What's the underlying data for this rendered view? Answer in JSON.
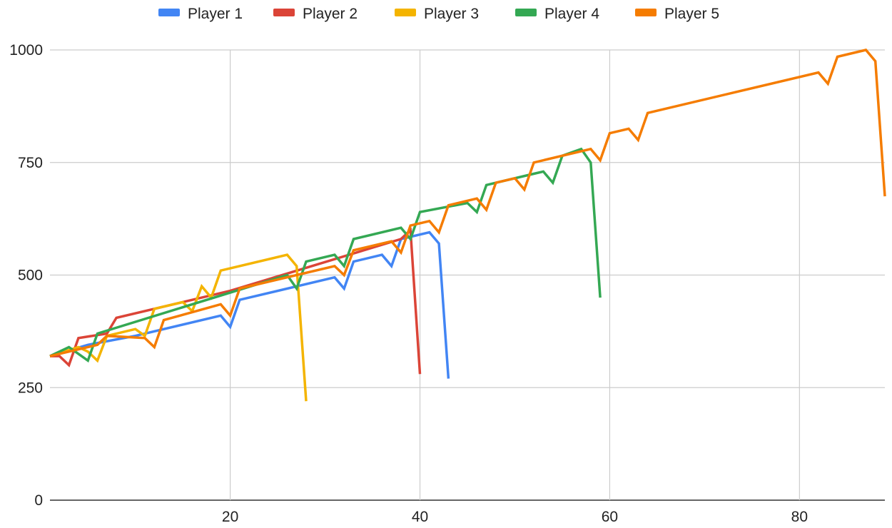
{
  "chart_data": {
    "type": "line",
    "title": "",
    "xlabel": "",
    "ylabel": "",
    "xlim": [
      1,
      89
    ],
    "ylim": [
      0,
      1000
    ],
    "x_ticks": [
      20,
      40,
      60,
      80
    ],
    "y_ticks": [
      0,
      250,
      500,
      750,
      1000
    ],
    "grid": true,
    "legend_position": "top",
    "series": [
      {
        "name": "Player 1",
        "color": "#4285F4",
        "points": [
          [
            1,
            320
          ],
          [
            5,
            345
          ],
          [
            10,
            365
          ],
          [
            19,
            410
          ],
          [
            20,
            385
          ],
          [
            21,
            445
          ],
          [
            31,
            495
          ],
          [
            32,
            470
          ],
          [
            33,
            530
          ],
          [
            36,
            545
          ],
          [
            37,
            520
          ],
          [
            38,
            580
          ],
          [
            41,
            595
          ],
          [
            42,
            570
          ],
          [
            43,
            270
          ]
        ]
      },
      {
        "name": "Player 2",
        "color": "#DB4437",
        "points": [
          [
            1,
            320
          ],
          [
            2,
            320
          ],
          [
            3,
            300
          ],
          [
            4,
            360
          ],
          [
            7,
            370
          ],
          [
            8,
            405
          ],
          [
            12,
            425
          ],
          [
            20,
            465
          ],
          [
            38,
            580
          ],
          [
            39,
            600
          ],
          [
            40,
            280
          ]
        ]
      },
      {
        "name": "Player 3",
        "color": "#F4B400",
        "points": [
          [
            1,
            320
          ],
          [
            4,
            340
          ],
          [
            5,
            330
          ],
          [
            6,
            310
          ],
          [
            7,
            365
          ],
          [
            10,
            380
          ],
          [
            11,
            365
          ],
          [
            12,
            425
          ],
          [
            15,
            440
          ],
          [
            16,
            420
          ],
          [
            17,
            475
          ],
          [
            18,
            450
          ],
          [
            19,
            510
          ],
          [
            26,
            545
          ],
          [
            27,
            520
          ],
          [
            28,
            220
          ]
        ]
      },
      {
        "name": "Player 4",
        "color": "#34A853",
        "points": [
          [
            1,
            320
          ],
          [
            3,
            340
          ],
          [
            4,
            325
          ],
          [
            5,
            310
          ],
          [
            6,
            370
          ],
          [
            26,
            500
          ],
          [
            27,
            470
          ],
          [
            28,
            530
          ],
          [
            31,
            545
          ],
          [
            32,
            520
          ],
          [
            33,
            580
          ],
          [
            38,
            605
          ],
          [
            39,
            580
          ],
          [
            40,
            640
          ],
          [
            45,
            660
          ],
          [
            46,
            640
          ],
          [
            47,
            700
          ],
          [
            52,
            725
          ],
          [
            53,
            730
          ],
          [
            54,
            705
          ],
          [
            55,
            765
          ],
          [
            57,
            780
          ],
          [
            58,
            750
          ],
          [
            59,
            450
          ]
        ]
      },
      {
        "name": "Player 5",
        "color": "#F57C00",
        "points": [
          [
            1,
            320
          ],
          [
            6,
            345
          ],
          [
            7,
            365
          ],
          [
            11,
            360
          ],
          [
            12,
            340
          ],
          [
            13,
            400
          ],
          [
            19,
            435
          ],
          [
            20,
            410
          ],
          [
            21,
            470
          ],
          [
            31,
            520
          ],
          [
            32,
            500
          ],
          [
            33,
            555
          ],
          [
            37,
            575
          ],
          [
            38,
            550
          ],
          [
            39,
            610
          ],
          [
            41,
            620
          ],
          [
            42,
            595
          ],
          [
            43,
            655
          ],
          [
            46,
            670
          ],
          [
            47,
            645
          ],
          [
            48,
            705
          ],
          [
            50,
            715
          ],
          [
            51,
            690
          ],
          [
            52,
            750
          ],
          [
            58,
            780
          ],
          [
            59,
            755
          ],
          [
            60,
            815
          ],
          [
            62,
            825
          ],
          [
            63,
            800
          ],
          [
            64,
            860
          ],
          [
            82,
            950
          ],
          [
            83,
            925
          ],
          [
            84,
            985
          ],
          [
            87,
            1000
          ],
          [
            88,
            975
          ],
          [
            89,
            675
          ]
        ]
      }
    ]
  }
}
